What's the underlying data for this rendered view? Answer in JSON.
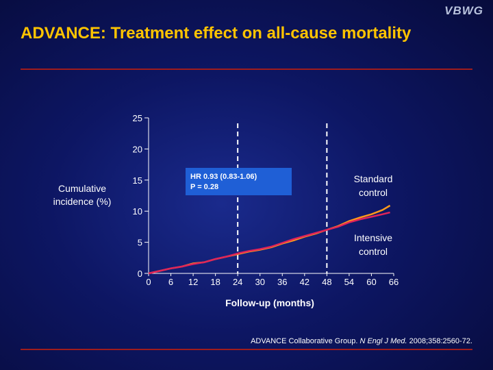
{
  "logo": "VBWG",
  "slide": {
    "title": "ADVANCE: Treatment effect on all-cause mortality",
    "citation": {
      "authors": "ADVANCE Collaborative Group.",
      "journal": "N Engl J Med.",
      "ref": "2008;358:2560-72."
    }
  },
  "colors": {
    "title": "#ffc400",
    "standard": "#ff9a1a",
    "intensive": "#e0245a",
    "rule": "#a01c1c",
    "hr_box": "#1f5fd6"
  },
  "chart_data": {
    "type": "line",
    "xlabel": "Follow-up (months)",
    "ylabel": "Cumulative\nincidence (%)",
    "xlim": [
      0,
      66
    ],
    "ylim": [
      0,
      25
    ],
    "xticks": [
      0,
      6,
      12,
      18,
      24,
      30,
      36,
      42,
      48,
      54,
      60,
      66
    ],
    "yticks": [
      0,
      5,
      10,
      15,
      20,
      25
    ],
    "reference_lines_x": [
      24,
      48
    ],
    "annotation": {
      "line1": "HR 0.93 (0.83-1.06)",
      "line2": "P = 0.28"
    },
    "series_labels": {
      "standard": "Standard\ncontrol",
      "intensive": "Intensive\ncontrol"
    },
    "series": [
      {
        "name": "Standard control",
        "x": [
          0,
          3,
          6,
          9,
          12,
          15,
          18,
          21,
          24,
          27,
          30,
          33,
          36,
          39,
          42,
          45,
          48,
          51,
          54,
          57,
          60,
          63,
          65
        ],
        "y": [
          0,
          0.4,
          0.8,
          1.1,
          1.6,
          1.8,
          2.3,
          2.7,
          3.1,
          3.5,
          3.8,
          4.2,
          4.8,
          5.3,
          5.9,
          6.4,
          7.0,
          7.6,
          8.4,
          9.0,
          9.5,
          10.2,
          10.9
        ]
      },
      {
        "name": "Intensive control",
        "x": [
          0,
          3,
          6,
          9,
          12,
          15,
          18,
          21,
          24,
          27,
          30,
          33,
          36,
          39,
          42,
          45,
          48,
          51,
          54,
          57,
          60,
          63,
          65
        ],
        "y": [
          0,
          0.4,
          0.8,
          1.1,
          1.5,
          1.8,
          2.3,
          2.7,
          3.2,
          3.6,
          3.9,
          4.3,
          4.9,
          5.5,
          6.0,
          6.5,
          7.0,
          7.5,
          8.2,
          8.7,
          9.1,
          9.5,
          9.8
        ]
      }
    ]
  }
}
